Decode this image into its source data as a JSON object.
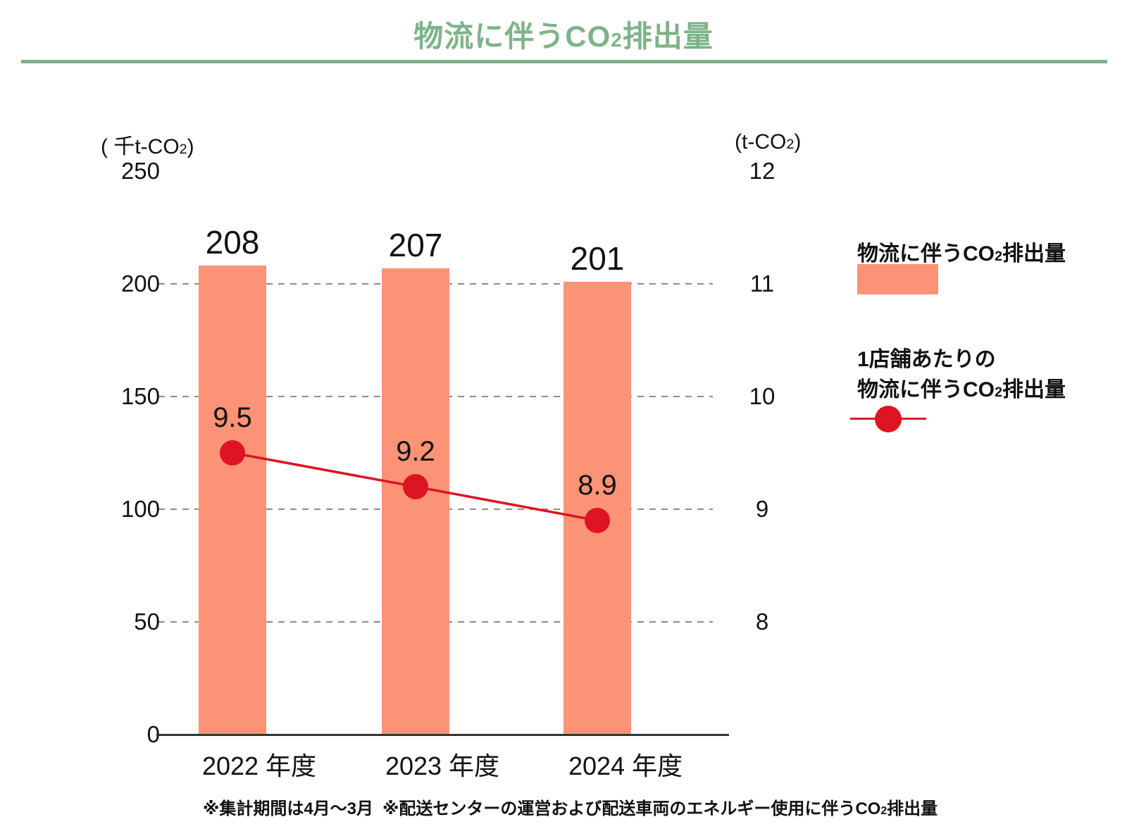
{
  "title": {
    "pre": "物流に伴うCO",
    "sub": "2",
    "post": "排出量"
  },
  "colors": {
    "title_green": "#7EB389",
    "rule_green": "#7FAF88",
    "bar_salmon": "#FC9376",
    "line_red": "#DE1423",
    "grid_gray": "#8C8C8C",
    "axis_black": "#333333",
    "text_black": "#111111"
  },
  "axes": {
    "left": {
      "unit_pre": "( 千t-CO",
      "unit_sub": "2",
      "unit_post": ")"
    },
    "right": {
      "unit_pre": "(t-CO",
      "unit_sub": "2",
      "unit_post": ")"
    }
  },
  "legend": {
    "bar_label": {
      "pre": "物流に伴うCO",
      "sub": "2",
      "post": "排出量"
    },
    "line_label": {
      "line1": "1店舗あたりの",
      "line2_pre": "物流に伴うCO",
      "sub": "2",
      "line2_post": "排出量"
    }
  },
  "footnotes": {
    "note1": "※集計期間は4月～3月",
    "note2_pre": "※配送センターの運営および配送車両のエネルギー使用に伴うCO",
    "note2_sub": "2",
    "note2_post": "排出量"
  },
  "chart_data": {
    "type": "bar",
    "subtype": "combo bar+line with dual y-axes",
    "title": "物流に伴うCO2排出量",
    "categories": [
      "2022 年度",
      "2023 年度",
      "2024 年度"
    ],
    "series": [
      {
        "name": "物流に伴うCO2排出量",
        "type": "bar",
        "axis": "left",
        "unit": "千t-CO2",
        "values": [
          208,
          207,
          201
        ],
        "color": "#FC9376"
      },
      {
        "name": "1店舗あたりの物流に伴うCO2排出量",
        "type": "line",
        "axis": "right",
        "unit": "t-CO2",
        "values": [
          9.5,
          9.2,
          8.9
        ],
        "color": "#DE1423"
      }
    ],
    "left_axis": {
      "label": "(千t-CO2)",
      "ticks": [
        0,
        50,
        100,
        150,
        200,
        250
      ],
      "range": [
        0,
        250
      ]
    },
    "right_axis": {
      "label": "(t-CO2)",
      "ticks": [
        8,
        9,
        10,
        11,
        12
      ],
      "range": [
        7,
        12
      ]
    },
    "grid": "dashed horizontal gridlines at left-axis 50/100/150/200",
    "legend_position": "right"
  }
}
